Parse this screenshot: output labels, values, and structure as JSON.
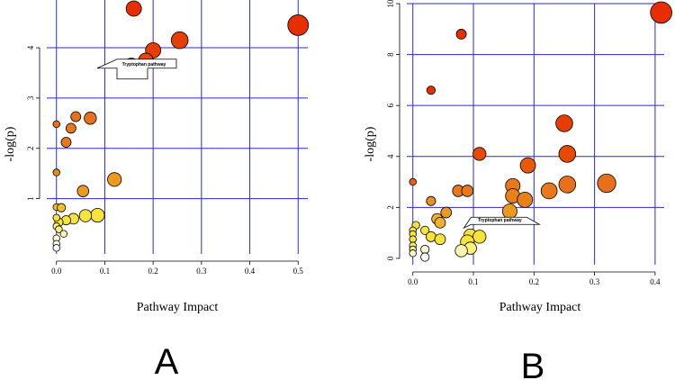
{
  "chart_data": [
    {
      "type": "scatter",
      "panel_label": "A",
      "xlabel": "Pathway Impact",
      "ylabel": "-log(p)",
      "xlim": [
        -0.02,
        0.52
      ],
      "ylim": [
        -0.1,
        4.95
      ],
      "xticks": [
        "0.0",
        "0.1",
        "0.2",
        "0.3",
        "0.4",
        "0.5"
      ],
      "xtick_values": [
        0,
        0.1,
        0.2,
        0.3,
        0.4,
        0.5
      ],
      "yticks": [
        "1",
        "2",
        "3",
        "4"
      ],
      "ytick_values": [
        1,
        2,
        3,
        4
      ],
      "grid": true,
      "annotation": {
        "text": "Tryptophan pathway",
        "x": 0.155,
        "y": 3.45
      },
      "points": [
        {
          "x": 0.16,
          "y": 4.78,
          "r": 1.0,
          "color": "#e62e00"
        },
        {
          "x": 0.5,
          "y": 4.45,
          "r": 1.35,
          "color": "#e62e00"
        },
        {
          "x": 0.255,
          "y": 4.15,
          "r": 1.1,
          "color": "#e63e00"
        },
        {
          "x": 0.2,
          "y": 3.95,
          "r": 1.0,
          "color": "#e63e00"
        },
        {
          "x": 0.185,
          "y": 3.75,
          "r": 0.95,
          "color": "#e64a00"
        },
        {
          "x": 0.155,
          "y": 3.65,
          "r": 0.95,
          "color": "#e64a00"
        },
        {
          "x": 0.07,
          "y": 2.6,
          "r": 0.8,
          "color": "#e8701a"
        },
        {
          "x": 0.04,
          "y": 2.63,
          "r": 0.65,
          "color": "#e8701a"
        },
        {
          "x": 0.0,
          "y": 2.48,
          "r": 0.45,
          "color": "#e8701a"
        },
        {
          "x": 0.03,
          "y": 2.4,
          "r": 0.65,
          "color": "#e8781a"
        },
        {
          "x": 0.02,
          "y": 2.12,
          "r": 0.65,
          "color": "#e8781a"
        },
        {
          "x": 0.0,
          "y": 1.52,
          "r": 0.45,
          "color": "#e8881a"
        },
        {
          "x": 0.12,
          "y": 1.38,
          "r": 0.9,
          "color": "#ec9a1f"
        },
        {
          "x": 0.055,
          "y": 1.15,
          "r": 0.75,
          "color": "#ec9a1f"
        },
        {
          "x": 0.0,
          "y": 0.83,
          "r": 0.45,
          "color": "#f0c02a"
        },
        {
          "x": 0.01,
          "y": 0.82,
          "r": 0.55,
          "color": "#f0c02a"
        },
        {
          "x": 0.085,
          "y": 0.67,
          "r": 0.9,
          "color": "#f7e43a"
        },
        {
          "x": 0.06,
          "y": 0.66,
          "r": 0.8,
          "color": "#f7e43a"
        },
        {
          "x": 0.035,
          "y": 0.6,
          "r": 0.7,
          "color": "#f7e43a"
        },
        {
          "x": 0.02,
          "y": 0.57,
          "r": 0.6,
          "color": "#f7e43a"
        },
        {
          "x": 0.005,
          "y": 0.53,
          "r": 0.55,
          "color": "#f7e43a"
        },
        {
          "x": 0.0,
          "y": 0.62,
          "r": 0.45,
          "color": "#f7e43a"
        },
        {
          "x": 0.0,
          "y": 0.45,
          "r": 0.45,
          "color": "#fbf07a"
        },
        {
          "x": 0.005,
          "y": 0.39,
          "r": 0.45,
          "color": "#fbf07a"
        },
        {
          "x": 0.015,
          "y": 0.3,
          "r": 0.45,
          "color": "#fcf5b0"
        },
        {
          "x": 0.0,
          "y": 0.21,
          "r": 0.45,
          "color": "#fdf8d0"
        },
        {
          "x": 0.0,
          "y": 0.1,
          "r": 0.45,
          "color": "#ffffff"
        },
        {
          "x": 0.0,
          "y": 0.02,
          "r": 0.45,
          "color": "#ffffff"
        }
      ]
    },
    {
      "type": "scatter",
      "panel_label": "B",
      "xlabel": "Pathway Impact",
      "ylabel": "-log(p)",
      "xlim": [
        -0.01,
        0.415
      ],
      "ylim": [
        -0.25,
        10
      ],
      "xticks": [
        "0.0",
        "0.1",
        "0.2",
        "0.3",
        "0.4"
      ],
      "xtick_values": [
        0,
        0.1,
        0.2,
        0.3,
        0.4
      ],
      "yticks": [
        "0",
        "2",
        "4",
        "6",
        "8",
        "10"
      ],
      "ytick_values": [
        0,
        2,
        4,
        6,
        8,
        10
      ],
      "grid": true,
      "annotation": {
        "text": "Tryptophan pathway",
        "x": 0.105,
        "y": 1.05
      },
      "points": [
        {
          "x": 0.41,
          "y": 9.65,
          "r": 1.4,
          "color": "#e62e00"
        },
        {
          "x": 0.08,
          "y": 8.8,
          "r": 0.65,
          "color": "#e62e00"
        },
        {
          "x": 0.03,
          "y": 6.6,
          "r": 0.55,
          "color": "#e62e00"
        },
        {
          "x": 0.25,
          "y": 5.3,
          "r": 1.1,
          "color": "#e63e00"
        },
        {
          "x": 0.255,
          "y": 4.1,
          "r": 1.1,
          "color": "#e64a00"
        },
        {
          "x": 0.11,
          "y": 4.1,
          "r": 0.85,
          "color": "#e64a00"
        },
        {
          "x": 0.19,
          "y": 3.65,
          "r": 1.0,
          "color": "#e85a0a"
        },
        {
          "x": 0.0,
          "y": 3.0,
          "r": 0.45,
          "color": "#e8601a"
        },
        {
          "x": 0.32,
          "y": 2.95,
          "r": 1.2,
          "color": "#e8701a"
        },
        {
          "x": 0.255,
          "y": 2.9,
          "r": 1.1,
          "color": "#e8701a"
        },
        {
          "x": 0.165,
          "y": 2.85,
          "r": 0.95,
          "color": "#e8781a"
        },
        {
          "x": 0.075,
          "y": 2.65,
          "r": 0.75,
          "color": "#e8781a"
        },
        {
          "x": 0.09,
          "y": 2.65,
          "r": 0.75,
          "color": "#e8781a"
        },
        {
          "x": 0.225,
          "y": 2.65,
          "r": 1.05,
          "color": "#e8781a"
        },
        {
          "x": 0.165,
          "y": 2.45,
          "r": 0.95,
          "color": "#e8801a"
        },
        {
          "x": 0.185,
          "y": 2.3,
          "r": 1.0,
          "color": "#e8801a"
        },
        {
          "x": 0.03,
          "y": 2.25,
          "r": 0.6,
          "color": "#ec9020"
        },
        {
          "x": 0.16,
          "y": 1.85,
          "r": 0.95,
          "color": "#ec9a1f"
        },
        {
          "x": 0.055,
          "y": 1.8,
          "r": 0.7,
          "color": "#ec9a1f"
        },
        {
          "x": 0.04,
          "y": 1.55,
          "r": 0.7,
          "color": "#f0b02a"
        },
        {
          "x": 0.045,
          "y": 1.4,
          "r": 0.7,
          "color": "#f0b02a"
        },
        {
          "x": 0.005,
          "y": 1.3,
          "r": 0.5,
          "color": "#f7e43a"
        },
        {
          "x": 0.0,
          "y": 1.1,
          "r": 0.45,
          "color": "#f7e43a"
        },
        {
          "x": 0.02,
          "y": 1.1,
          "r": 0.55,
          "color": "#f7e43a"
        },
        {
          "x": 0.0,
          "y": 0.95,
          "r": 0.45,
          "color": "#f7e43a"
        },
        {
          "x": 0.095,
          "y": 0.9,
          "r": 0.85,
          "color": "#f7e43a"
        },
        {
          "x": 0.03,
          "y": 0.85,
          "r": 0.65,
          "color": "#f7e43a"
        },
        {
          "x": 0.11,
          "y": 0.85,
          "r": 0.85,
          "color": "#f7e43a"
        },
        {
          "x": 0.0,
          "y": 0.75,
          "r": 0.45,
          "color": "#f7e43a"
        },
        {
          "x": 0.045,
          "y": 0.75,
          "r": 0.7,
          "color": "#f7e43a"
        },
        {
          "x": 0.09,
          "y": 0.65,
          "r": 0.9,
          "color": "#f7e43a"
        },
        {
          "x": 0.0,
          "y": 0.5,
          "r": 0.45,
          "color": "#fbf07a"
        },
        {
          "x": 0.0,
          "y": 0.35,
          "r": 0.45,
          "color": "#fbf07a"
        },
        {
          "x": 0.095,
          "y": 0.4,
          "r": 0.8,
          "color": "#fbf07a"
        },
        {
          "x": 0.08,
          "y": 0.3,
          "r": 0.8,
          "color": "#fcf5b0"
        },
        {
          "x": 0.0,
          "y": 0.2,
          "r": 0.45,
          "color": "#fdf8d0"
        },
        {
          "x": 0.02,
          "y": 0.35,
          "r": 0.55,
          "color": "#fdf8d0"
        },
        {
          "x": 0.02,
          "y": 0.05,
          "r": 0.55,
          "color": "#ffffff"
        }
      ]
    }
  ]
}
